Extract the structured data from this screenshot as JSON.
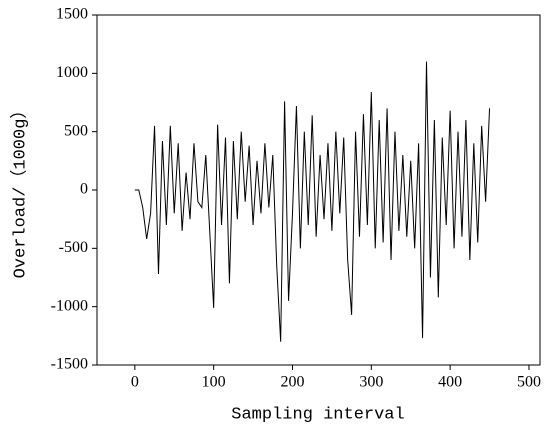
{
  "chart_data": {
    "type": "line",
    "x_label": "Sampling interval",
    "y_label": "Overload/（1000g）",
    "x": [
      0,
      5,
      10,
      15,
      20,
      25,
      30,
      35,
      40,
      45,
      50,
      55,
      60,
      65,
      70,
      75,
      80,
      85,
      90,
      95,
      100,
      105,
      110,
      115,
      120,
      125,
      130,
      135,
      140,
      145,
      150,
      155,
      160,
      165,
      170,
      175,
      180,
      185,
      190,
      195,
      200,
      205,
      210,
      215,
      220,
      225,
      230,
      235,
      240,
      245,
      250,
      255,
      260,
      265,
      270,
      275,
      280,
      285,
      290,
      295,
      300,
      305,
      310,
      315,
      320,
      325,
      330,
      335,
      340,
      345,
      350,
      355,
      360,
      365,
      370,
      375,
      380,
      385,
      390,
      395,
      400,
      405,
      410,
      415,
      420,
      425,
      430,
      435,
      440,
      445,
      450
    ],
    "values": [
      0,
      0,
      -150,
      -420,
      -200,
      550,
      -720,
      420,
      -300,
      550,
      -200,
      400,
      -350,
      150,
      -250,
      400,
      -100,
      -150,
      300,
      -350,
      -1010,
      560,
      -300,
      450,
      -800,
      420,
      -250,
      500,
      -100,
      380,
      -300,
      250,
      -200,
      400,
      -150,
      300,
      -650,
      -1300,
      760,
      -950,
      -200,
      720,
      -500,
      500,
      -300,
      640,
      -400,
      300,
      -250,
      400,
      -350,
      500,
      -200,
      450,
      -600,
      -1070,
      500,
      -400,
      650,
      -300,
      840,
      -500,
      600,
      -450,
      700,
      -600,
      500,
      -350,
      300,
      -400,
      250,
      -500,
      400,
      -1270,
      1100,
      -750,
      600,
      -920,
      450,
      -300,
      680,
      -500,
      500,
      -400,
      600,
      -600,
      400,
      -450,
      550,
      -100,
      700
    ],
    "color": "#000000",
    "xlim": [
      -48,
      514
    ],
    "ylim": [
      -1500,
      1500
    ],
    "xticks": [
      0,
      100,
      200,
      300,
      400,
      500
    ],
    "yticks": [
      -1500,
      -1000,
      -500,
      0,
      500,
      1000,
      1500
    ]
  }
}
